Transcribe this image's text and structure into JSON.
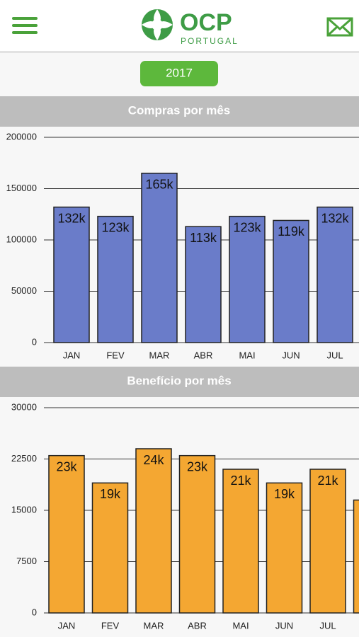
{
  "header": {
    "brand": "OCP",
    "sub": "PORTUGAL"
  },
  "year": "2017",
  "chart_data": [
    {
      "type": "bar",
      "title": "Compras por mês",
      "categories": [
        "JAN",
        "FEV",
        "MAR",
        "ABR",
        "MAI",
        "JUN",
        "JUL"
      ],
      "values": [
        132000,
        123000,
        165000,
        113000,
        123000,
        119000,
        132000
      ],
      "value_labels": [
        "132k",
        "123k",
        "165k",
        "113k",
        "123k",
        "119k",
        "132k"
      ],
      "color": "#6a7cc9",
      "ylim": [
        0,
        200000
      ],
      "yticks": [
        0,
        50000,
        100000,
        150000,
        200000
      ],
      "grid": true
    },
    {
      "type": "bar",
      "title": "Benefício por mês",
      "categories": [
        "JAN",
        "FEV",
        "MAR",
        "ABR",
        "MAI",
        "JUN",
        "JUL",
        null
      ],
      "values": [
        23000,
        19000,
        24000,
        23000,
        21000,
        19000,
        21000,
        16500
      ],
      "value_labels": [
        "23k",
        "19k",
        "24k",
        "23k",
        "21k",
        "19k",
        "21k",
        null
      ],
      "color": "#f4a732",
      "ylim": [
        0,
        30000
      ],
      "yticks": [
        0,
        7500,
        15000,
        22500,
        30000
      ],
      "grid": true
    }
  ]
}
